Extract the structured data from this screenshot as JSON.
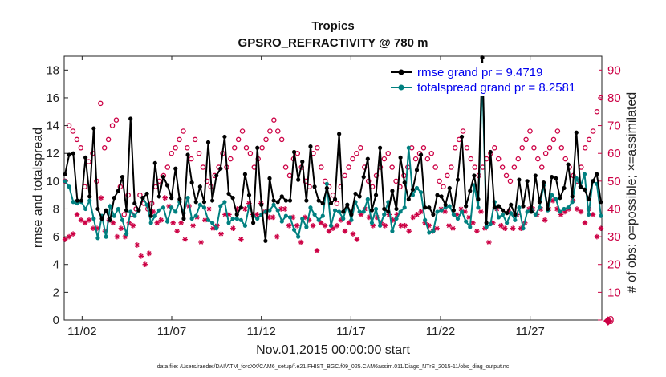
{
  "chart_data": {
    "type": "line",
    "title": "Tropics",
    "subtitle": "GPSRO_REFRACTIVITY @ 780 m",
    "xlabel": "Nov.01,2015 00:00:00 start",
    "ylabel": "rmse and totalspread",
    "y2label": "# of obs: o=possible; ×=assimilated",
    "footnote": "data file: /Users/raeder/DAI/ATM_forcXX/CAM6_setup/f.e21.FHIST_BGC.f09_025.CAM6assim.011/Diags_NTrS_2015-11/obs_diag_output.nc",
    "xlim": [
      1.0,
      31.0
    ],
    "ylim": [
      0,
      19
    ],
    "y2lim": [
      0,
      95
    ],
    "x_ticks": [
      2,
      7,
      12,
      17,
      22,
      27
    ],
    "x_tick_labels": [
      "11/02",
      "11/07",
      "11/12",
      "11/17",
      "11/22",
      "11/27"
    ],
    "y_ticks": [
      0,
      2,
      4,
      6,
      8,
      10,
      12,
      14,
      16,
      18
    ],
    "y2_ticks": [
      0,
      10,
      20,
      30,
      40,
      50,
      60,
      70,
      80,
      90
    ],
    "legend_position": "top-right",
    "colors": {
      "rmse": "#000000",
      "totalspread": "#008080",
      "obs": "#cc0044"
    },
    "series": [
      {
        "name": "rmse grand pr = 9.4719",
        "axis": "left",
        "marker": "dot",
        "values": [
          10.5,
          11.9,
          12.0,
          8.6,
          8.6,
          11.7,
          8.9,
          13.8,
          8.0,
          7.3,
          7.9,
          7.2,
          8.8,
          9.3,
          10.3,
          7.9,
          14.5,
          8.4,
          7.9,
          8.8,
          9.1,
          7.5,
          11.3,
          8.9,
          10.3,
          9.7,
          8.8,
          10.9,
          8.7,
          7.3,
          11.9,
          9.9,
          8.5,
          9.6,
          8.5,
          12.8,
          8.6,
          10.4,
          10.9,
          13.2,
          9.1,
          8.8,
          7.6,
          8.1,
          10.5,
          9.0,
          7.0,
          12.4,
          8.3,
          5.7,
          10.2,
          8.6,
          8.5,
          8.9,
          8.6,
          8.6,
          12.1,
          10.1,
          11.4,
          8.6,
          12.5,
          9.6,
          8.6,
          8.4,
          9.5,
          8.4,
          8.7,
          13.4,
          7.8,
          8.3,
          7.6,
          9.1,
          8.9,
          10.3,
          11.6,
          7.9,
          9.0,
          12.4,
          8.0,
          7.8,
          9.3,
          8.0,
          11.7,
          9.9,
          8.7,
          9.4,
          10.8,
          11.9,
          8.1,
          8.1,
          7.6,
          9.0,
          8.9,
          8.3,
          9.5,
          7.9,
          10.1,
          13.2,
          8.2,
          9.3,
          10.4,
          8.7,
          18.9,
          7.0,
          12.1,
          8.1,
          8.2,
          7.9,
          7.7,
          8.3,
          7.6,
          10.1,
          8.2,
          10.0,
          7.8,
          10.4,
          8.5,
          9.9,
          8.0,
          10.3,
          10.2,
          8.8,
          9.5,
          11.2,
          8.9,
          13.5,
          9.6,
          9.4,
          8.7,
          10.0,
          10.5,
          8.5
        ]
      },
      {
        "name": "totalspread grand pr = 8.2581",
        "axis": "left",
        "marker": "dot",
        "values": [
          10.0,
          9.6,
          8.5,
          8.4,
          8.5,
          8.0,
          8.6,
          7.3,
          5.9,
          7.5,
          6.0,
          8.2,
          7.5,
          8.0,
          7.2,
          6.2,
          7.8,
          7.5,
          7.9,
          8.8,
          8.3,
          7.0,
          7.5,
          7.9,
          8.1,
          7.1,
          8.1,
          7.8,
          8.5,
          7.7,
          8.8,
          7.3,
          7.5,
          8.3,
          8.1,
          7.2,
          7.0,
          6.6,
          8.2,
          8.5,
          7.0,
          7.3,
          7.3,
          7.2,
          6.8,
          8.2,
          7.5,
          7.3,
          7.6,
          7.8,
          7.9,
          8.3,
          7.9,
          7.1,
          7.5,
          7.4,
          6.5,
          6.0,
          7.3,
          6.7,
          8.1,
          7.6,
          7.2,
          7.5,
          9.8,
          6.8,
          7.9,
          7.8,
          7.3,
          8.3,
          7.2,
          8.5,
          7.8,
          7.8,
          8.7,
          7.0,
          8.0,
          6.8,
          7.6,
          8.5,
          6.4,
          7.3,
          7.8,
          8.1,
          12.4,
          9.0,
          9.5,
          9.2,
          7.2,
          6.3,
          6.4,
          7.8,
          7.9,
          8.1,
          8.2,
          7.6,
          7.3,
          7.8,
          7.1,
          6.7,
          9.7,
          8.1,
          17.5,
          6.7,
          6.9,
          8.5,
          7.4,
          7.6,
          7.0,
          7.7,
          7.2,
          8.1,
          6.6,
          7.8,
          8.0,
          7.6,
          8.1,
          9.7,
          7.9,
          9.0,
          8.7,
          7.8,
          8.0,
          8.1,
          8.5,
          10.2,
          9.6,
          10.5,
          7.6,
          10.0,
          9.8,
          7.5
        ]
      },
      {
        "name": "# of obs possible",
        "axis": "right",
        "marker": "circle",
        "values": [
          50,
          70,
          68,
          65,
          62,
          48,
          57,
          60,
          50,
          78,
          62,
          65,
          70,
          72,
          48,
          38,
          45,
          38,
          40,
          45,
          42,
          40,
          42,
          48,
          50,
          52,
          55,
          60,
          62,
          65,
          68,
          62,
          58,
          65,
          60,
          55,
          50,
          48,
          52,
          55,
          60,
          55,
          58,
          62,
          65,
          68,
          62,
          60,
          55,
          58,
          62,
          65,
          68,
          72,
          68,
          65,
          55,
          52,
          58,
          60,
          55,
          50,
          48,
          60,
          62,
          55,
          50,
          48,
          45,
          42,
          48,
          52,
          55,
          58,
          60,
          62,
          55,
          50,
          48,
          52,
          55,
          58,
          60,
          55,
          50,
          48,
          52,
          55,
          62,
          58,
          60,
          62,
          58,
          60,
          55,
          50,
          48,
          52,
          55,
          62,
          65,
          68,
          62,
          58,
          55,
          52,
          55,
          58,
          60,
          62,
          58,
          55,
          52,
          50,
          55,
          58,
          62,
          65,
          68,
          62,
          58,
          55,
          60,
          62,
          65,
          68,
          62,
          58,
          55,
          52,
          50,
          55,
          62,
          65,
          68,
          75,
          80
        ]
      },
      {
        "name": "# of obs assimilated",
        "axis": "right",
        "marker": "asterisk",
        "values": [
          29,
          30,
          31,
          38,
          36,
          35,
          36,
          33,
          33,
          44,
          32,
          36,
          35,
          30,
          33,
          30,
          35,
          34,
          27,
          23,
          20,
          24,
          39,
          35,
          36,
          44,
          41,
          35,
          32,
          35,
          29,
          41,
          34,
          37,
          28,
          36,
          40,
          33,
          34,
          31,
          38,
          38,
          33,
          40,
          29,
          40,
          42,
          38,
          38,
          42,
          39,
          37,
          37,
          30,
          40,
          40,
          34,
          37,
          34,
          28,
          37,
          36,
          34,
          25,
          35,
          34,
          32,
          33,
          34,
          36,
          32,
          35,
          31,
          29,
          38,
          40,
          37,
          34,
          37,
          35,
          34,
          38,
          36,
          38,
          34,
          34,
          32,
          37,
          38,
          39,
          35,
          34,
          32,
          33,
          40,
          39,
          34,
          33,
          38,
          40,
          39,
          37,
          35,
          32,
          39,
          33,
          28,
          35,
          40,
          34,
          33,
          39,
          33,
          38,
          33,
          35,
          40,
          40,
          38,
          40,
          36,
          40,
          43,
          40,
          38,
          39,
          40,
          43,
          40,
          39,
          35,
          40,
          38,
          30,
          33
        ]
      }
    ]
  }
}
